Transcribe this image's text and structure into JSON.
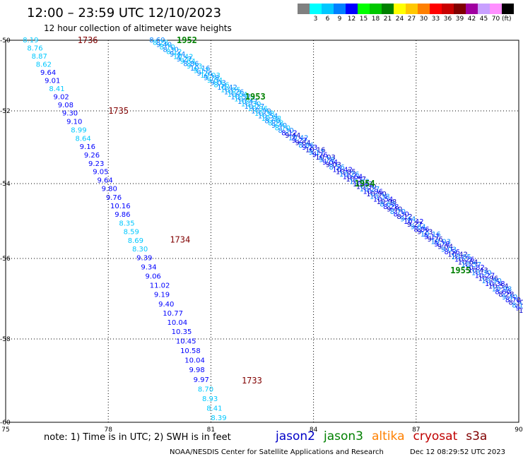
{
  "header": {
    "title": "12:00 – 23:59 UTC 12/10/2023",
    "subtitle": "12 hour collection of altimeter wave heights"
  },
  "legend": {
    "unit": "(ft)",
    "bins": [
      {
        "label": "",
        "color": "#808080"
      },
      {
        "label": "3",
        "color": "#00ffff"
      },
      {
        "label": "6",
        "color": "#00c8ff"
      },
      {
        "label": "9",
        "color": "#0080ff"
      },
      {
        "label": "12",
        "color": "#0000ff"
      },
      {
        "label": "15",
        "color": "#00ff00"
      },
      {
        "label": "18",
        "color": "#00c800"
      },
      {
        "label": "21",
        "color": "#008000"
      },
      {
        "label": "24",
        "color": "#ffff00"
      },
      {
        "label": "27",
        "color": "#ffc800"
      },
      {
        "label": "30",
        "color": "#ff8000"
      },
      {
        "label": "33",
        "color": "#ff0000"
      },
      {
        "label": "36",
        "color": "#c80000"
      },
      {
        "label": "39",
        "color": "#800000"
      },
      {
        "label": "42",
        "color": "#a000a0"
      },
      {
        "label": "45",
        "color": "#c8a0ff"
      },
      {
        "label": "70",
        "color": "#ff90ff"
      },
      {
        "label": "",
        "color": "#000000"
      }
    ]
  },
  "map": {
    "lon_range": [
      75,
      90
    ],
    "lat_range": [
      -50,
      -60
    ],
    "lon_ticks": [
      "75",
      "78",
      "81",
      "84",
      "87",
      "90"
    ],
    "lat_ticks": [
      "-50",
      "-52",
      "-54",
      "-56",
      "-58",
      "-60"
    ]
  },
  "track_a": {
    "lon_start": 75.5,
    "lat_start": -50.0,
    "lon_end": 81.0,
    "lat_end": -59.9,
    "values": [
      "8.19",
      "8.76",
      "8.87",
      "8.62",
      "9.64",
      "9.01",
      "8.41",
      "9.02",
      "9.08",
      "9.30",
      "9.10",
      "8.99",
      "8.64",
      "9.16",
      "9.26",
      "9.23",
      "9.05",
      "9.64",
      "9.80",
      "9.76",
      "10.16",
      "9.86",
      "8.35",
      "8.59",
      "8.69",
      "8.30",
      "9.39",
      "9.34",
      "9.06",
      "11.02",
      "9.19",
      "9.40",
      "10.77",
      "10.04",
      "10.35",
      "10.45",
      "10.58",
      "10.04",
      "9.98",
      "9.97",
      "8.70",
      "8.93",
      "8.41",
      "8.39"
    ],
    "colors": [
      "#00c8ff",
      "#00c8ff",
      "#00c8ff",
      "#00c8ff",
      "#0000ff",
      "#0000ff",
      "#00c8ff",
      "#0000ff",
      "#0000ff",
      "#0000ff",
      "#0000ff",
      "#00c8ff",
      "#00c8ff",
      "#0000ff",
      "#0000ff",
      "#0000ff",
      "#0000ff",
      "#0000ff",
      "#0000ff",
      "#0000ff",
      "#0000ff",
      "#0000ff",
      "#00c8ff",
      "#00c8ff",
      "#00c8ff",
      "#00c8ff",
      "#0000ff",
      "#0000ff",
      "#0000ff",
      "#0000ff",
      "#0000ff",
      "#0000ff",
      "#0000ff",
      "#0000ff",
      "#0000ff",
      "#0000ff",
      "#0000ff",
      "#0000ff",
      "#0000ff",
      "#0000ff",
      "#00c8ff",
      "#00c8ff",
      "#00c8ff",
      "#00c8ff"
    ],
    "times": [
      {
        "text": "1736",
        "lon": 77.1,
        "lat": -50.0
      },
      {
        "text": "1735",
        "lon": 78.0,
        "lat": -52.0
      },
      {
        "text": "1734",
        "lon": 79.8,
        "lat": -55.5
      },
      {
        "text": "1733",
        "lon": 81.9,
        "lat": -59.0
      }
    ],
    "time_color": "#800000"
  },
  "track_b": {
    "lon_start": 79.2,
    "lat_start": -50.0,
    "lon_end": 90.0,
    "lat_end": -57.3,
    "count": 110,
    "sample_values": [
      "8.60",
      "8.28",
      "9.40",
      "8.70",
      "8.30",
      "8.12",
      "9.44",
      "10.42",
      "9.27",
      "9.64",
      "8.86",
      "9.23",
      "10.16",
      "9.17",
      "9.26",
      "10.03",
      "9.78",
      "9.04",
      "9.03",
      "8.56",
      "10.42",
      "10.05",
      "10.26",
      "10.64",
      "10.57",
      "10.82",
      "10.43",
      "10.30",
      "10.27",
      "10.96",
      "10.90",
      "10.38",
      "10.54",
      "10.98"
    ],
    "times": [
      {
        "text": "1952",
        "lon": 80.0,
        "lat": -50.0
      },
      {
        "text": "1953",
        "lon": 82.0,
        "lat": -51.6
      },
      {
        "text": "1954",
        "lon": 85.2,
        "lat": -54.0
      },
      {
        "text": "1955",
        "lon": 88.0,
        "lat": -56.3
      }
    ],
    "time_color": "#008000"
  },
  "note": "note:  1) Time is in UTC;  2) SWH is in feet",
  "missions": [
    {
      "name": "jason2",
      "color": "#0000c8"
    },
    {
      "name": "jason3",
      "color": "#008000"
    },
    {
      "name": "altika",
      "color": "#ff8000"
    },
    {
      "name": "cryosat",
      "color": "#c00000"
    },
    {
      "name": "s3a",
      "color": "#800000"
    }
  ],
  "credit": "NOAA/NESDIS Center for Satellite Applications and Research",
  "timestamp": "Dec 12 08:29:52 UTC 2023"
}
